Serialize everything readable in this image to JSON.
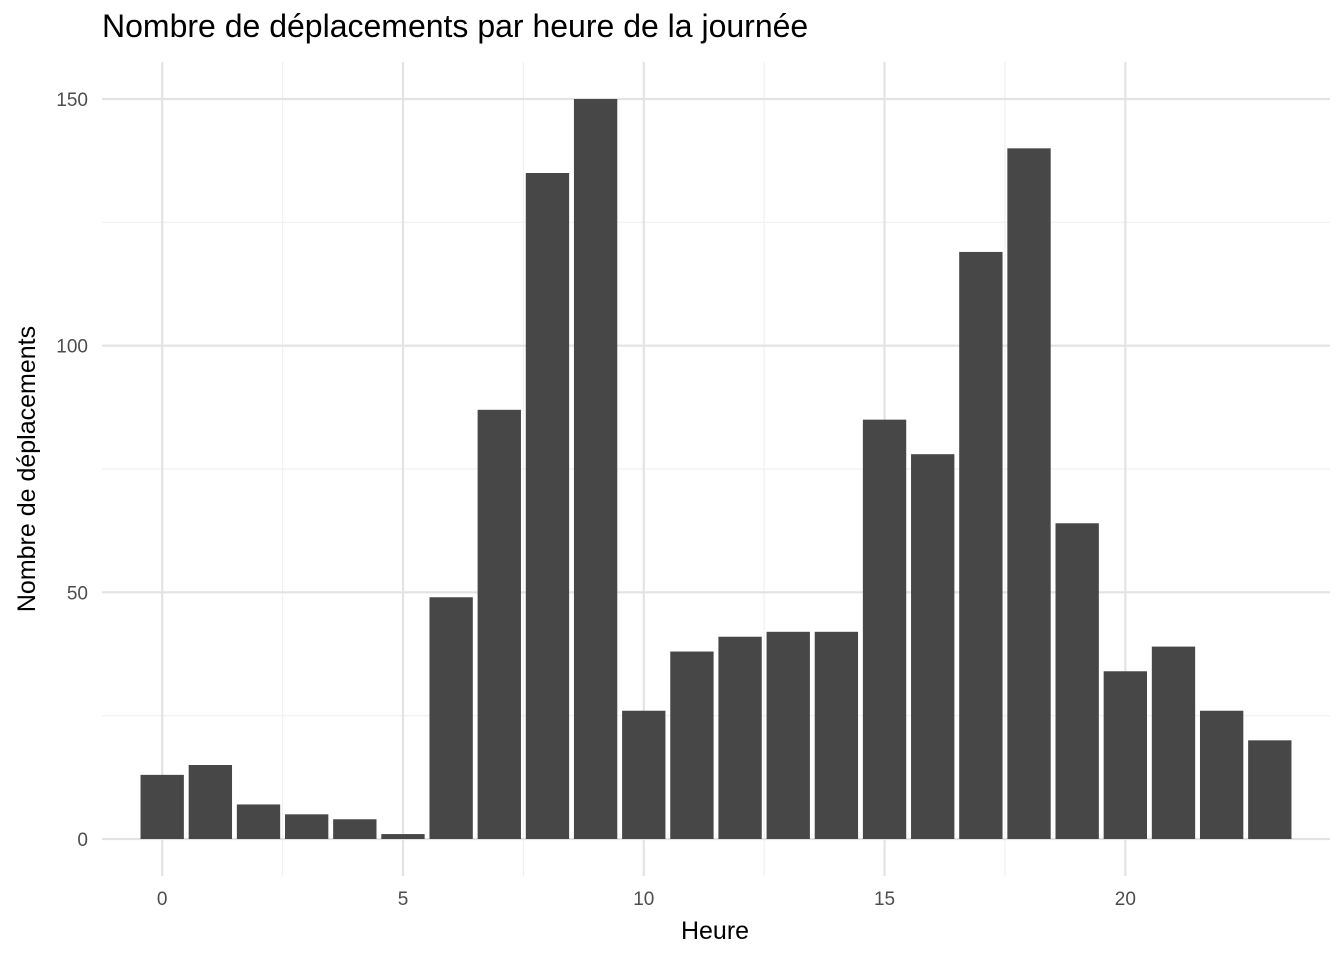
{
  "chart_data": {
    "type": "bar",
    "title": "Nombre de déplacements par heure de la journée",
    "xlabel": "Heure",
    "ylabel": "Nombre de déplacements",
    "x": [
      0,
      1,
      2,
      3,
      4,
      5,
      6,
      7,
      8,
      9,
      10,
      11,
      12,
      13,
      14,
      15,
      16,
      17,
      18,
      19,
      20,
      21,
      22,
      23
    ],
    "values": [
      13,
      15,
      7,
      5,
      4,
      1,
      49,
      87,
      135,
      150,
      26,
      38,
      41,
      42,
      42,
      85,
      78,
      119,
      140,
      64,
      34,
      39,
      26,
      20
    ],
    "xlim": [
      -1.25,
      24.25
    ],
    "ylim": [
      -7.5,
      157.5
    ],
    "xticks": [
      0,
      5,
      10,
      15,
      20
    ],
    "xtick_labels": [
      "0",
      "5",
      "10",
      "15",
      "20"
    ],
    "yticks": [
      0,
      50,
      100,
      150
    ],
    "ytick_labels": [
      "0",
      "50",
      "100",
      "150"
    ],
    "grid": true,
    "bar_color": "#474747",
    "grid_major_color": "#e3e3e3",
    "grid_minor_color": "#f0f0f0"
  }
}
